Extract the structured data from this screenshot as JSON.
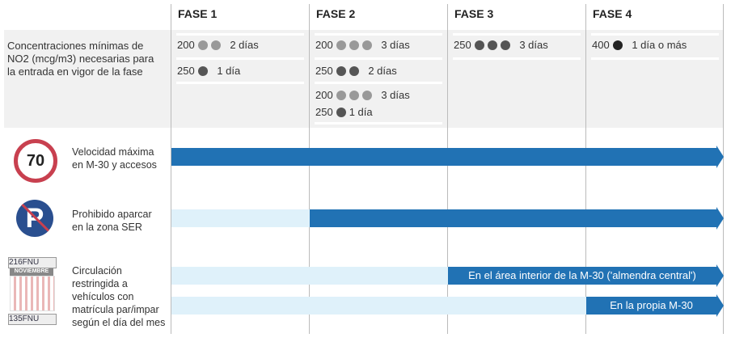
{
  "phases": [
    "FASE 1",
    "FASE 2",
    "FASE 3",
    "FASE 4"
  ],
  "concentration_label": "Concentraciones mínimas de NO2 (mcg/m3) necesarias para la entrada en vigor de la fase",
  "thresholds": {
    "f1a": {
      "value": "200",
      "days": "2 días"
    },
    "f1b": {
      "value": "250",
      "days": "1 día"
    },
    "f2a": {
      "value": "200",
      "days": "3 días"
    },
    "f2b": {
      "value": "250",
      "days": "2 días"
    },
    "f2c": {
      "value": "200",
      "days": "3 días"
    },
    "f2d": {
      "value": "250",
      "days": "1 día"
    },
    "f3a": {
      "value": "250",
      "days": "3 días"
    },
    "f4a": {
      "value": "400",
      "days": "1 día o más"
    }
  },
  "measures": {
    "speed": {
      "label": "Velocidad máxima en M-30 y accesos",
      "sign": "70"
    },
    "parking": {
      "label": "Prohibido aparcar en la zona SER"
    },
    "traffic": {
      "label": "Circulación restringida a vehículos con matrícula par/impar según el día del mes",
      "bar1": "En el área interior de la M-30 ('almendra central')",
      "bar2": "En la propia M-30",
      "plate1": "216FNU",
      "plate2": "135FNU",
      "calendar": "NOVIEMBRE"
    }
  },
  "colors": {
    "bar": "#2172b4",
    "bar_light": "#dff1fa",
    "band": "#f1f1f1"
  }
}
